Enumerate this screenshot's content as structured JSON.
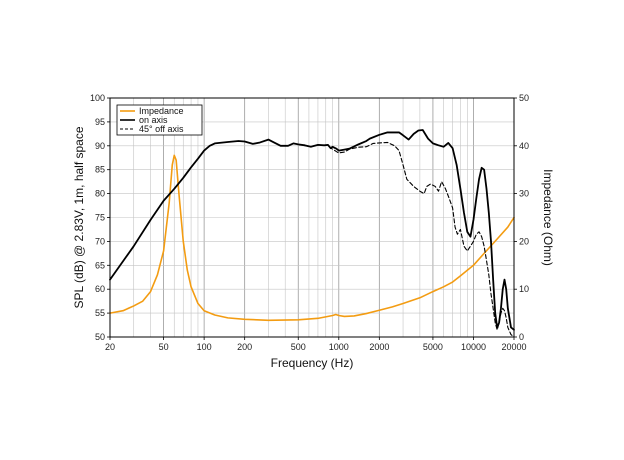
{
  "chart_data": {
    "type": "line",
    "xscale": "log",
    "xlim": [
      20,
      20000
    ],
    "ylim": [
      50,
      100
    ],
    "ylim_right": [
      0,
      50
    ],
    "xlabel": "Frequency (Hz)",
    "ylabel": "SPL (dB) @ 2.83V, 1m, half space",
    "ylabel_right": "Impedance (Ohm)",
    "x_ticks": [
      20,
      50,
      100,
      200,
      500,
      1000,
      2000,
      5000,
      10000,
      20000
    ],
    "x_tick_labels": [
      "20",
      "50",
      "100",
      "200",
      "500",
      "1000",
      "2000",
      "5000",
      "10000",
      "20000"
    ],
    "y_ticks": [
      50,
      55,
      60,
      65,
      70,
      75,
      80,
      85,
      90,
      95,
      100
    ],
    "y_tick_labels": [
      "50",
      "55",
      "60",
      "65",
      "70",
      "75",
      "80",
      "85",
      "90",
      "95",
      "100"
    ],
    "y_right_ticks": [
      0,
      10,
      20,
      30,
      40,
      50
    ],
    "y_right_tick_labels": [
      "0",
      "10",
      "20",
      "30",
      "40",
      "50"
    ],
    "grid": true,
    "legend_position": "top-left",
    "colors": {
      "impedance": "#f39c12",
      "on_axis": "#000000",
      "off_axis": "#000000"
    },
    "series": [
      {
        "name": "Impedance",
        "axis": "right",
        "style": "solid",
        "points": [
          [
            20,
            5
          ],
          [
            25,
            5.5
          ],
          [
            30,
            6.5
          ],
          [
            35,
            7.5
          ],
          [
            40,
            9.5
          ],
          [
            45,
            13
          ],
          [
            50,
            18
          ],
          [
            55,
            28
          ],
          [
            58,
            36
          ],
          [
            60,
            38
          ],
          [
            62,
            37
          ],
          [
            65,
            30
          ],
          [
            70,
            20
          ],
          [
            75,
            14
          ],
          [
            80,
            10.5
          ],
          [
            90,
            7
          ],
          [
            100,
            5.5
          ],
          [
            120,
            4.6
          ],
          [
            150,
            4
          ],
          [
            200,
            3.7
          ],
          [
            300,
            3.5
          ],
          [
            500,
            3.6
          ],
          [
            700,
            3.9
          ],
          [
            900,
            4.5
          ],
          [
            950,
            4.7
          ],
          [
            1000,
            4.5
          ],
          [
            1100,
            4.3
          ],
          [
            1300,
            4.4
          ],
          [
            1600,
            4.9
          ],
          [
            2000,
            5.6
          ],
          [
            2500,
            6.3
          ],
          [
            3000,
            7
          ],
          [
            4000,
            8.2
          ],
          [
            5000,
            9.5
          ],
          [
            6000,
            10.5
          ],
          [
            7000,
            11.5
          ],
          [
            8000,
            12.8
          ],
          [
            10000,
            15
          ],
          [
            12000,
            17.5
          ],
          [
            15000,
            20.5
          ],
          [
            18000,
            23
          ],
          [
            20000,
            25
          ]
        ]
      },
      {
        "name": "on axis",
        "axis": "left",
        "style": "solid",
        "points": [
          [
            20,
            62
          ],
          [
            30,
            69
          ],
          [
            40,
            74.5
          ],
          [
            50,
            78.5
          ],
          [
            60,
            81
          ],
          [
            70,
            83.3
          ],
          [
            80,
            85.5
          ],
          [
            90,
            87.3
          ],
          [
            100,
            89
          ],
          [
            110,
            90
          ],
          [
            120,
            90.5
          ],
          [
            150,
            90.8
          ],
          [
            180,
            91
          ],
          [
            200,
            90.9
          ],
          [
            230,
            90.4
          ],
          [
            260,
            90.7
          ],
          [
            300,
            91.3
          ],
          [
            330,
            90.7
          ],
          [
            370,
            90
          ],
          [
            420,
            90
          ],
          [
            460,
            90.5
          ],
          [
            500,
            90.3
          ],
          [
            560,
            90.1
          ],
          [
            620,
            89.8
          ],
          [
            700,
            90.2
          ],
          [
            780,
            90.1
          ],
          [
            830,
            90.2
          ],
          [
            870,
            89.5
          ],
          [
            900,
            89.8
          ],
          [
            960,
            89.4
          ],
          [
            1000,
            89
          ],
          [
            1100,
            89.2
          ],
          [
            1200,
            89.4
          ],
          [
            1400,
            90.3
          ],
          [
            1600,
            91
          ],
          [
            1700,
            91.5
          ],
          [
            2000,
            92.3
          ],
          [
            2300,
            92.8
          ],
          [
            2800,
            92.8
          ],
          [
            3000,
            92.2
          ],
          [
            3300,
            91.3
          ],
          [
            3600,
            92.5
          ],
          [
            3900,
            93.2
          ],
          [
            4200,
            93.3
          ],
          [
            4600,
            91.5
          ],
          [
            5000,
            90.5
          ],
          [
            5500,
            90.1
          ],
          [
            6000,
            89.8
          ],
          [
            6500,
            90.6
          ],
          [
            7000,
            89.5
          ],
          [
            7500,
            86
          ],
          [
            8000,
            81
          ],
          [
            8500,
            76
          ],
          [
            9000,
            72
          ],
          [
            9500,
            71
          ],
          [
            10000,
            74.5
          ],
          [
            10500,
            79
          ],
          [
            11000,
            83
          ],
          [
            11500,
            85.4
          ],
          [
            12000,
            85
          ],
          [
            12500,
            81
          ],
          [
            13000,
            76
          ],
          [
            13500,
            70
          ],
          [
            14000,
            62
          ],
          [
            14500,
            55
          ],
          [
            15000,
            52
          ],
          [
            15500,
            53
          ],
          [
            16000,
            56
          ],
          [
            16500,
            60
          ],
          [
            17000,
            62
          ],
          [
            17500,
            60
          ],
          [
            18000,
            56
          ],
          [
            19000,
            52
          ],
          [
            20000,
            51.5
          ]
        ]
      },
      {
        "name": "45° off axis",
        "axis": "left",
        "style": "dashed",
        "points": [
          [
            500,
            90.3
          ],
          [
            620,
            89.8
          ],
          [
            700,
            90.2
          ],
          [
            780,
            90.1
          ],
          [
            830,
            90.2
          ],
          [
            870,
            89.5
          ],
          [
            900,
            89.3
          ],
          [
            960,
            88.8
          ],
          [
            1000,
            88.5
          ],
          [
            1100,
            88.7
          ],
          [
            1200,
            89.3
          ],
          [
            1400,
            89.7
          ],
          [
            1600,
            89.8
          ],
          [
            1800,
            90.5
          ],
          [
            2000,
            90.6
          ],
          [
            2300,
            90.7
          ],
          [
            2600,
            90
          ],
          [
            2800,
            89
          ],
          [
            3000,
            86
          ],
          [
            3200,
            83
          ],
          [
            3600,
            81.5
          ],
          [
            4000,
            80.5
          ],
          [
            4300,
            80
          ],
          [
            4500,
            81.5
          ],
          [
            4800,
            82
          ],
          [
            5200,
            81.5
          ],
          [
            5500,
            80.5
          ],
          [
            5800,
            82.5
          ],
          [
            6200,
            81
          ],
          [
            6600,
            79
          ],
          [
            7000,
            77
          ],
          [
            7300,
            73
          ],
          [
            7600,
            71.5
          ],
          [
            8000,
            72.5
          ],
          [
            8500,
            69
          ],
          [
            9000,
            68
          ],
          [
            9500,
            69
          ],
          [
            10000,
            70
          ],
          [
            10500,
            71.5
          ],
          [
            11000,
            72
          ],
          [
            11500,
            71
          ],
          [
            12000,
            69
          ],
          [
            12500,
            66
          ],
          [
            13000,
            63
          ],
          [
            13500,
            59
          ],
          [
            14000,
            56
          ],
          [
            14500,
            53
          ],
          [
            15000,
            51.5
          ],
          [
            15500,
            53
          ],
          [
            16000,
            55
          ],
          [
            16500,
            56
          ],
          [
            17000,
            55.5
          ],
          [
            17500,
            54
          ],
          [
            18000,
            52
          ],
          [
            19000,
            50.5
          ],
          [
            20000,
            50
          ]
        ]
      }
    ]
  }
}
